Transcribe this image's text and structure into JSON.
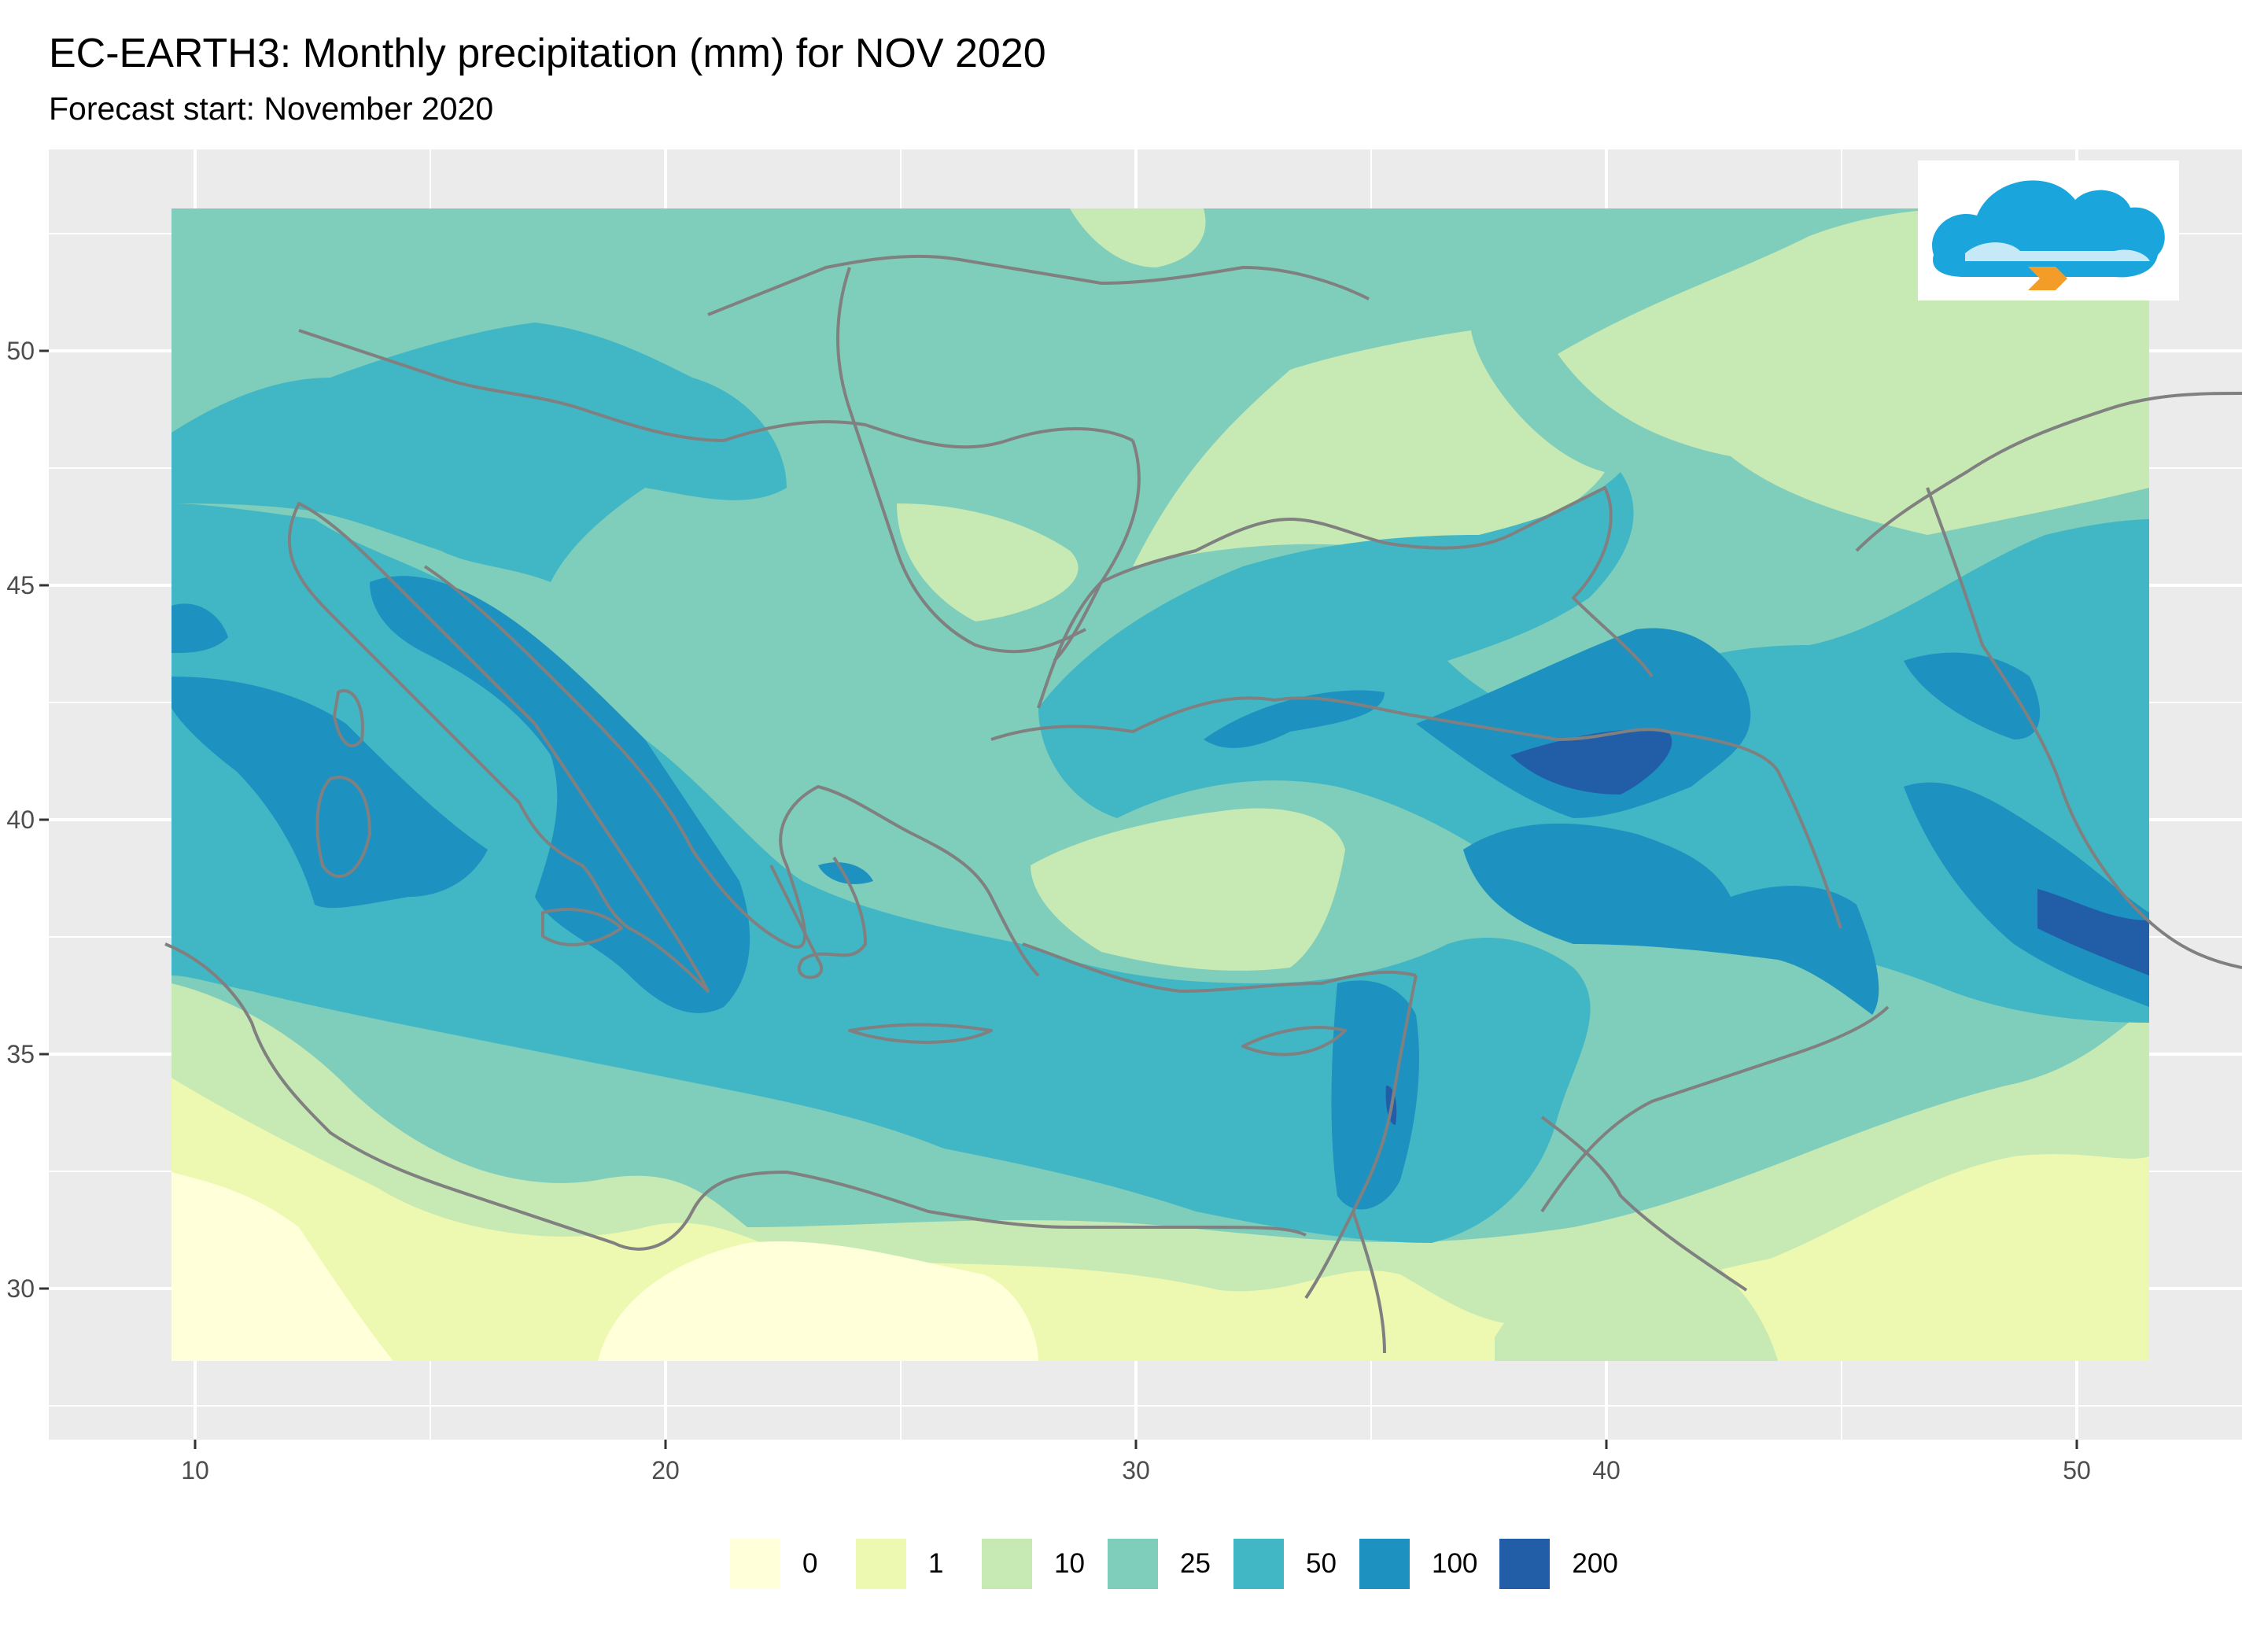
{
  "title": "EC-EARTH3: Monthly precipitation (mm) for NOV 2020",
  "subtitle": "Forecast start: November 2020",
  "map": {
    "background": "#ebebeb",
    "grid_color": "#ffffff",
    "border_color": "#808080",
    "x_ticks": [
      {
        "value": 10,
        "label": "10"
      },
      {
        "value": 20,
        "label": "20"
      },
      {
        "value": 30,
        "label": "30"
      },
      {
        "value": 40,
        "label": "40"
      },
      {
        "value": 50,
        "label": "50"
      }
    ],
    "y_ticks": [
      {
        "value": 30,
        "label": "30"
      },
      {
        "value": 35,
        "label": "35"
      },
      {
        "value": 40,
        "label": "40"
      },
      {
        "value": 45,
        "label": "45"
      },
      {
        "value": 50,
        "label": "50"
      }
    ]
  },
  "legend": {
    "items": [
      {
        "label": "0",
        "color": "#ffffd9"
      },
      {
        "label": "1",
        "color": "#edf8b1"
      },
      {
        "label": "10",
        "color": "#c7e9b4"
      },
      {
        "label": "25",
        "color": "#7fcdbb"
      },
      {
        "label": "50",
        "color": "#41b6c4"
      },
      {
        "label": "100",
        "color": "#1d91c0"
      },
      {
        "label": "200",
        "color": "#225ea8"
      }
    ]
  },
  "logo": {
    "icon": "cloud-logo-icon"
  }
}
